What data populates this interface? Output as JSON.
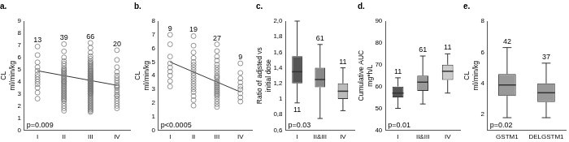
{
  "chart_data": [
    {
      "type": "scatter",
      "title": "a.",
      "y_label": [
        "CL",
        "ml/min/kg"
      ],
      "categories": [
        "I",
        "II",
        "III",
        "IV"
      ],
      "values": [
        [
          6.9,
          6.2,
          5.6,
          5.2,
          4.9,
          4.6,
          4.4,
          4.2,
          4.0,
          3.8,
          3.5,
          3.1,
          2.6
        ],
        [
          7.1,
          6.5,
          6.0,
          5.7,
          5.5,
          5.3,
          5.1,
          5.0,
          4.9,
          4.8,
          4.7,
          4.6,
          4.5,
          4.4,
          4.3,
          4.2,
          4.1,
          4.0,
          4.0,
          3.9,
          3.8,
          3.7,
          3.6,
          3.5,
          3.4,
          3.3,
          3.2,
          3.1,
          3.0,
          2.9,
          2.8,
          2.7,
          2.6,
          2.5,
          2.4,
          2.2,
          2.0,
          1.8,
          1.6
        ],
        [
          7.2,
          6.8,
          6.4,
          6.1,
          5.9,
          5.7,
          5.6,
          5.5,
          5.4,
          5.3,
          5.2,
          5.1,
          5.0,
          4.9,
          4.9,
          4.8,
          4.7,
          4.7,
          4.6,
          4.5,
          4.5,
          4.4,
          4.4,
          4.3,
          4.3,
          4.2,
          4.2,
          4.1,
          4.1,
          4.0,
          4.0,
          3.9,
          3.9,
          3.8,
          3.8,
          3.7,
          3.7,
          3.6,
          3.6,
          3.5,
          3.5,
          3.4,
          3.4,
          3.3,
          3.3,
          3.2,
          3.2,
          3.1,
          3.1,
          3.0,
          3.0,
          2.9,
          2.8,
          2.7,
          2.6,
          2.5,
          2.4,
          2.3,
          2.2,
          2.1,
          2.0,
          1.9,
          1.8,
          1.7,
          1.6,
          1.5
        ],
        [
          6.6,
          5.8,
          5.2,
          4.8,
          4.5,
          4.3,
          4.1,
          3.9,
          3.7,
          3.6,
          3.5,
          3.3,
          3.1,
          2.9,
          2.8,
          2.6,
          2.4,
          2.2,
          2.0,
          1.8
        ]
      ],
      "trend": {
        "categories": [
          "I",
          "IV"
        ],
        "values": [
          4.9,
          3.7
        ]
      },
      "n_labels": [
        13,
        39,
        66,
        20
      ],
      "annotation": "p=0.009",
      "marker": "circle",
      "color": "#777777",
      "ylim": [
        0,
        9
      ],
      "yticks": [
        0,
        1,
        2,
        3,
        4,
        5,
        6,
        7,
        8,
        9
      ],
      "grid": false
    },
    {
      "type": "scatter",
      "title": "b.",
      "y_label": [
        "CL",
        "ml/min/kg"
      ],
      "categories": [
        "I",
        "II",
        "III",
        "IV"
      ],
      "values": [
        [
          7.0,
          6.3,
          5.4,
          4.9,
          4.6,
          4.3,
          4.0,
          3.6,
          3.2
        ],
        [
          6.9,
          6.2,
          5.7,
          5.3,
          5.0,
          4.8,
          4.6,
          4.4,
          4.2,
          4.0,
          3.8,
          3.6,
          3.4,
          3.2,
          3.0,
          2.8,
          2.5,
          2.2,
          1.8
        ],
        [
          6.3,
          5.8,
          5.4,
          5.1,
          4.8,
          4.6,
          4.4,
          4.2,
          4.0,
          3.9,
          3.8,
          3.6,
          3.5,
          3.4,
          3.3,
          3.2,
          3.1,
          3.0,
          2.9,
          2.8,
          2.7,
          2.6,
          2.5,
          2.3,
          2.1,
          1.9,
          1.7
        ],
        [
          4.9,
          4.2,
          3.8,
          3.5,
          3.2,
          3.0,
          2.7,
          2.4,
          2.1
        ]
      ],
      "trend": {
        "categories": [
          "I",
          "IV"
        ],
        "values": [
          5.0,
          2.8
        ]
      },
      "n_labels": [
        9,
        19,
        27,
        9
      ],
      "annotation": "p<0.0005",
      "marker": "circle",
      "color": "#777777",
      "ylim": [
        0,
        8
      ],
      "yticks": [
        0,
        1,
        2,
        3,
        4,
        5,
        6,
        7,
        8
      ],
      "grid": false
    },
    {
      "type": "box",
      "title": "c.",
      "y_label": [
        "Ratio of adjsted vs",
        "initial dose"
      ],
      "categories": [
        "I",
        "II&III",
        "IV"
      ],
      "boxes": [
        {
          "min": 0.95,
          "q1": 1.2,
          "median": 1.35,
          "q3": 1.55,
          "max": 2.0
        },
        {
          "min": 0.75,
          "q1": 1.15,
          "median": 1.25,
          "q3": 1.4,
          "max": 1.7
        },
        {
          "min": 0.85,
          "q1": 1.0,
          "median": 1.1,
          "q3": 1.2,
          "max": 1.4
        }
      ],
      "colors": [
        "#555555",
        "#888888",
        "#bbbbbb"
      ],
      "n_labels": [
        11,
        61,
        11
      ],
      "annotation": "p=0.03",
      "ylim": [
        0.6,
        2.0
      ],
      "yticks": [
        {
          "value": 0.6,
          "label": "0,6"
        },
        {
          "value": 0.8,
          "label": "0,8"
        },
        1,
        {
          "value": 1.2,
          "label": "1,2"
        },
        {
          "value": 1.4,
          "label": "1,4"
        },
        {
          "value": 1.6,
          "label": "1,6"
        },
        {
          "value": 1.8,
          "label": "1,8"
        },
        {
          "value": 2.0,
          "label": "2,0"
        }
      ],
      "grid": false
    },
    {
      "type": "box",
      "title": "d.",
      "y_label": [
        "Cumulative AUC",
        "mg*h/L"
      ],
      "categories": [
        "I",
        "II&III",
        "IV"
      ],
      "boxes": [
        {
          "min": 50,
          "q1": 55,
          "median": 57,
          "q3": 60,
          "max": 64
        },
        {
          "min": 52,
          "q1": 58,
          "median": 62,
          "q3": 65,
          "max": 74
        },
        {
          "min": 57,
          "q1": 63,
          "median": 67,
          "q3": 70,
          "max": 75
        }
      ],
      "colors": [
        "#555555",
        "#999999",
        "#cccccc"
      ],
      "n_labels": [
        11,
        61,
        11
      ],
      "annotation": "p=0.01",
      "ylim": [
        40,
        90
      ],
      "yticks": [
        40,
        50,
        60,
        70,
        80,
        90
      ],
      "grid": false
    },
    {
      "type": "box",
      "title": "e.",
      "y_label": [
        "CL",
        "ml/min/kg"
      ],
      "categories": [
        "GSTM1",
        "DELGSTM1"
      ],
      "boxes": [
        {
          "min": 1.8,
          "q1": 3.2,
          "median": 3.9,
          "q3": 4.6,
          "max": 6.3
        },
        {
          "min": 1.8,
          "q1": 2.8,
          "median": 3.4,
          "q3": 4.0,
          "max": 5.3
        }
      ],
      "colors": [
        "#999999",
        "#999999"
      ],
      "n_labels": [
        42,
        37
      ],
      "annotation": "p=0.02",
      "ylim": [
        1,
        8
      ],
      "yticks": [
        2,
        4,
        6,
        8
      ],
      "grid": false
    }
  ]
}
